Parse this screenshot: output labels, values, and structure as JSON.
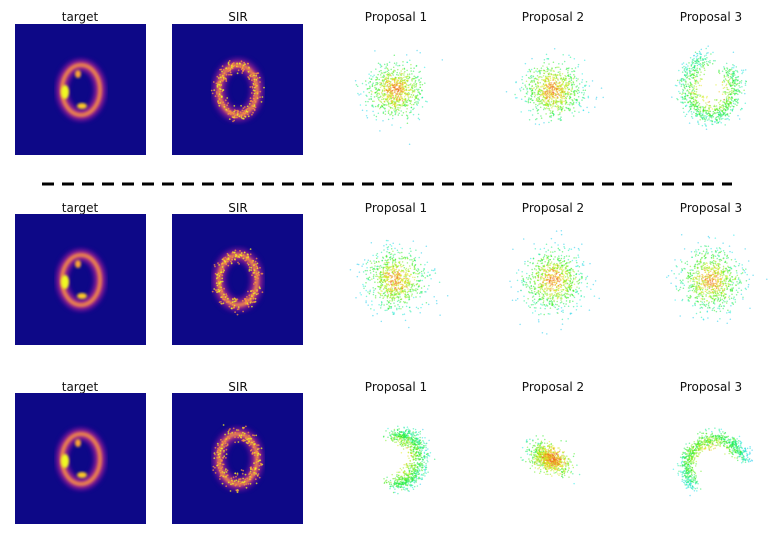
{
  "rows": [
    {
      "titles": {
        "target": "target",
        "sir": "SIR",
        "p1": "Proposal 1",
        "p2": "Proposal 2",
        "p3": "Proposal 3"
      }
    },
    {
      "titles": {
        "target": "target",
        "sir": "SIR",
        "p1": "Proposal 1",
        "p2": "Proposal 2",
        "p3": "Proposal 3"
      }
    },
    {
      "titles": {
        "target": "target",
        "sir": "SIR",
        "p1": "Proposal 1",
        "p2": "Proposal 2",
        "p3": "Proposal 3"
      }
    }
  ],
  "colors": {
    "heat_background": "#0d0887",
    "heat_mid": "#cc4778",
    "heat_high": "#f89540",
    "heat_peak": "#f0f921",
    "divider": "#000000"
  }
}
